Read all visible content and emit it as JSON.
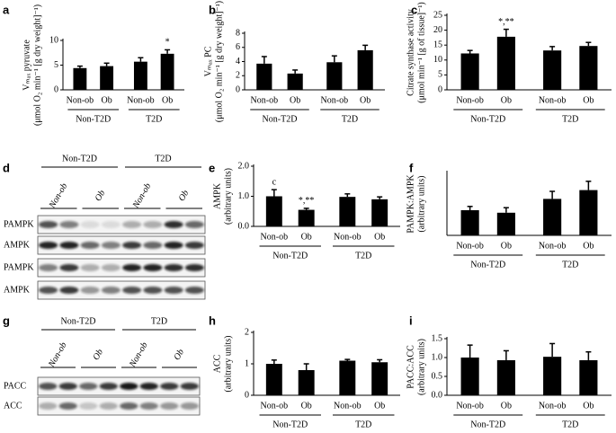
{
  "chart_data": [
    {
      "type": "bar",
      "label": "a",
      "ylabel": [
        "Vₘₐₓ pyruvate",
        "(μmol O₂ min⁻¹ [g dry weight]⁻¹)"
      ],
      "categories": [
        "Non-ob",
        "Ob",
        "Non-ob",
        "Ob"
      ],
      "groups": [
        "Non-T2D",
        "T2D"
      ],
      "values": [
        4.4,
        4.8,
        5.7,
        7.3
      ],
      "errors": [
        0.4,
        0.6,
        0.8,
        0.8
      ],
      "annotations": [
        null,
        null,
        null,
        "*"
      ],
      "color": "#000000",
      "ylim": [
        0,
        10
      ],
      "yticks": [
        0,
        5,
        10
      ]
    },
    {
      "type": "bar",
      "label": "b",
      "ylabel": [
        "Vₘₐₓ PC",
        "(μmol O₂ min⁻¹ [g dry weight]⁻¹)"
      ],
      "categories": [
        "Non-ob",
        "Ob",
        "Non-ob",
        "Ob"
      ],
      "groups": [
        "Non-T2D",
        "T2D"
      ],
      "values": [
        3.7,
        2.3,
        3.9,
        5.6
      ],
      "errors": [
        1.0,
        0.5,
        0.9,
        0.7
      ],
      "color": "#000000",
      "ylim": [
        0,
        8
      ],
      "yticks": [
        0,
        2,
        4,
        6,
        8
      ]
    },
    {
      "type": "bar",
      "label": "c",
      "ylabel": [
        "Citrate synthase activity",
        "(μmol min⁻¹ [g of tissue]⁻¹)"
      ],
      "categories": [
        "Non-ob",
        "Ob",
        "Non-ob",
        "Ob"
      ],
      "groups": [
        "Non-T2D",
        "T2D"
      ],
      "values": [
        12.2,
        17.8,
        13.2,
        14.7
      ],
      "errors": [
        1.0,
        2.5,
        1.3,
        1.2
      ],
      "annotations": [
        null,
        "*,**",
        null,
        null
      ],
      "color": "#000000",
      "ylim": [
        0,
        25
      ],
      "yticks": [
        0,
        5,
        10,
        15,
        20,
        25
      ]
    },
    {
      "type": "bar",
      "label": "e",
      "ylabel": [
        "AMPK",
        "(arbitrary units)"
      ],
      "categories": [
        "Non-ob",
        "Ob",
        "Non-ob",
        "Ob"
      ],
      "groups": [
        "Non-T2D",
        "T2D"
      ],
      "values": [
        1.0,
        0.55,
        0.98,
        0.9
      ],
      "errors": [
        0.22,
        0.05,
        0.1,
        0.08
      ],
      "annotations": [
        "c",
        "*,**",
        null,
        null
      ],
      "color": "#000000",
      "ylim": [
        0,
        2
      ],
      "yticks": [
        {
          "value": 0,
          "label": "0.0"
        },
        {
          "value": 1,
          "label": "1.0"
        },
        {
          "value": 2,
          "label": "2.0"
        }
      ]
    },
    {
      "type": "bar",
      "label": "f",
      "ylabel": [
        "PAMPK:AMPK",
        "(arbitrary units)"
      ],
      "categories": [
        "Non-ob",
        "Ob",
        "Non-ob",
        "Ob"
      ],
      "groups": [
        "Non-T2D",
        "T2D"
      ],
      "values": [
        1.0,
        0.9,
        1.45,
        1.8
      ],
      "errors": [
        0.15,
        0.2,
        0.3,
        0.35
      ],
      "color": "#000000",
      "ylim": [
        0,
        2.5
      ]
    },
    {
      "type": "bar",
      "label": "h",
      "ylabel": [
        "ACC",
        "(arbitrary units)"
      ],
      "categories": [
        "Non-ob",
        "Ob",
        "Non-ob",
        "Ob"
      ],
      "groups": [
        "Non-T2D",
        "T2D"
      ],
      "values": [
        1.0,
        0.8,
        1.1,
        1.05
      ],
      "errors": [
        0.12,
        0.2,
        0.04,
        0.08
      ],
      "color": "#000000",
      "ylim": [
        0,
        2
      ],
      "yticks": [
        0,
        1,
        2
      ]
    },
    {
      "type": "bar",
      "label": "i",
      "ylabel": [
        "PACC:ACC",
        "(arbitrary units)"
      ],
      "categories": [
        "Non-ob",
        "Ob",
        "Non-ob",
        "Ob"
      ],
      "groups": [
        "Non-T2D",
        "T2D"
      ],
      "values": [
        1.0,
        0.93,
        1.02,
        0.93
      ],
      "errors": [
        0.33,
        0.25,
        0.35,
        0.22
      ],
      "color": "#000000",
      "ylim": [
        0,
        1.5
      ],
      "yticks": [
        {
          "value": 0,
          "label": "0.0"
        },
        {
          "value": 0.5,
          "label": "0.5"
        },
        {
          "value": 1,
          "label": "1.0"
        },
        {
          "value": 1.5,
          "label": "1.5"
        }
      ]
    }
  ],
  "blots": [
    {
      "label": "d",
      "groups": [
        "Non-T2D",
        "T2D"
      ],
      "lanes": [
        "Non-ob",
        "Ob",
        "Non-ob",
        "Ob"
      ],
      "rows": [
        "PAMPK",
        "AMPK",
        "PAMPK",
        "AMPK"
      ]
    },
    {
      "label": "g",
      "groups": [
        "Non-T2D",
        "T2D"
      ],
      "lanes": [
        "Non-ob",
        "Ob",
        "Non-ob",
        "Ob"
      ],
      "rows": [
        "PACC",
        "ACC"
      ]
    }
  ]
}
